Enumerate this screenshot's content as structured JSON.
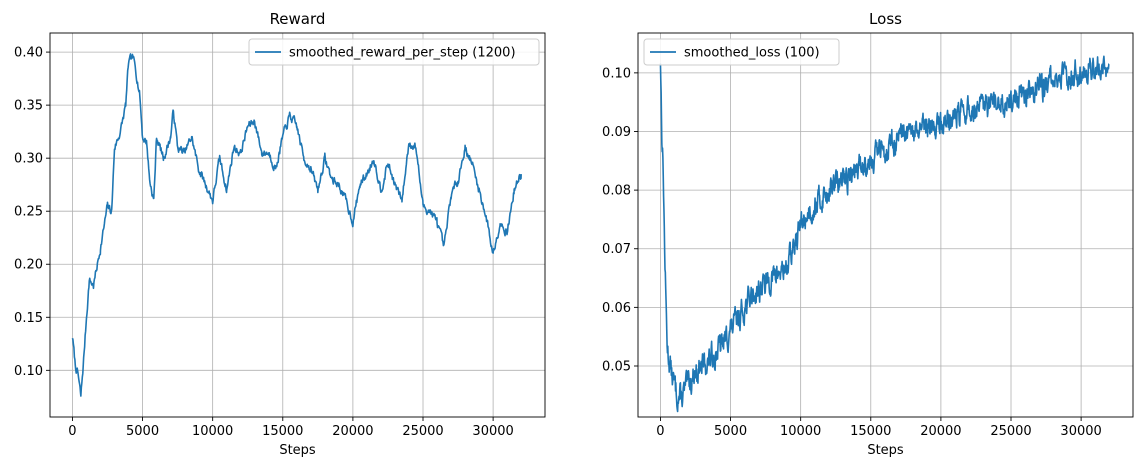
{
  "chart_data": [
    {
      "type": "line",
      "title": "Reward",
      "xlabel": "Steps",
      "ylabel": "",
      "xlim": [
        -1600,
        33700
      ],
      "ylim": [
        0.056,
        0.418
      ],
      "xticks": [
        0,
        5000,
        10000,
        15000,
        20000,
        25000,
        30000
      ],
      "xtick_labels": [
        "0",
        "5000",
        "10000",
        "15000",
        "20000",
        "25000",
        "30000"
      ],
      "yticks": [
        0.1,
        0.15,
        0.2,
        0.25,
        0.3,
        0.35,
        0.4
      ],
      "ytick_labels": [
        "0.10",
        "0.15",
        "0.20",
        "0.25",
        "0.30",
        "0.35",
        "0.40"
      ],
      "grid": true,
      "legend_position": "top-right",
      "series": [
        {
          "name": "smoothed_reward_per_step (1200)",
          "color": "#1f77b4",
          "x": [
            0,
            200,
            400,
            600,
            800,
            1000,
            1200,
            1500,
            2000,
            2500,
            2800,
            3000,
            3300,
            3500,
            3800,
            4000,
            4300,
            4500,
            4800,
            5000,
            5300,
            5500,
            5800,
            6000,
            6500,
            7000,
            7200,
            7500,
            8000,
            8500,
            9000,
            9500,
            10000,
            10500,
            11000,
            11500,
            12000,
            12500,
            13000,
            13500,
            14000,
            14500,
            15000,
            15500,
            16000,
            16500,
            17000,
            17500,
            18000,
            18500,
            19000,
            19500,
            20000,
            20500,
            21000,
            21500,
            22000,
            22500,
            23000,
            23500,
            24000,
            24500,
            25000,
            25500,
            26000,
            26500,
            27000,
            27500,
            28000,
            28500,
            29000,
            29500,
            30000,
            30500,
            31000,
            31500,
            32000
          ],
          "values": [
            0.132,
            0.105,
            0.096,
            0.075,
            0.11,
            0.15,
            0.185,
            0.18,
            0.215,
            0.255,
            0.25,
            0.31,
            0.32,
            0.33,
            0.35,
            0.39,
            0.395,
            0.385,
            0.36,
            0.32,
            0.315,
            0.28,
            0.26,
            0.32,
            0.3,
            0.32,
            0.345,
            0.31,
            0.305,
            0.32,
            0.29,
            0.275,
            0.26,
            0.3,
            0.27,
            0.31,
            0.305,
            0.33,
            0.335,
            0.305,
            0.305,
            0.29,
            0.32,
            0.34,
            0.33,
            0.3,
            0.29,
            0.27,
            0.3,
            0.28,
            0.275,
            0.26,
            0.24,
            0.275,
            0.285,
            0.3,
            0.27,
            0.295,
            0.275,
            0.26,
            0.315,
            0.31,
            0.255,
            0.25,
            0.24,
            0.215,
            0.265,
            0.28,
            0.31,
            0.295,
            0.27,
            0.245,
            0.21,
            0.24,
            0.23,
            0.27,
            0.285
          ]
        }
      ]
    },
    {
      "type": "line",
      "title": "Loss",
      "xlabel": "Steps",
      "ylabel": "",
      "xlim": [
        -1600,
        33700
      ],
      "ylim": [
        0.0413,
        0.1068
      ],
      "xticks": [
        0,
        5000,
        10000,
        15000,
        20000,
        25000,
        30000
      ],
      "xtick_labels": [
        "0",
        "5000",
        "10000",
        "15000",
        "20000",
        "25000",
        "30000"
      ],
      "yticks": [
        0.05,
        0.06,
        0.07,
        0.08,
        0.09,
        0.1
      ],
      "ytick_labels": [
        "0.05",
        "0.06",
        "0.07",
        "0.08",
        "0.09",
        "0.10"
      ],
      "grid": true,
      "legend_position": "top-left",
      "series": [
        {
          "name": "smoothed_loss (100)",
          "color": "#1f77b4",
          "x": [
            0,
            100,
            200,
            300,
            400,
            500,
            700,
            900,
            1200,
            1500,
            2000,
            2500,
            3000,
            3500,
            4000,
            4500,
            5000,
            5500,
            6000,
            6500,
            7000,
            7500,
            8000,
            8500,
            9000,
            9500,
            10000,
            10500,
            11000,
            11500,
            12000,
            12500,
            13000,
            13500,
            14000,
            14500,
            15000,
            15500,
            16000,
            16500,
            17000,
            17500,
            18000,
            18500,
            19000,
            19500,
            20000,
            20500,
            21000,
            21500,
            22000,
            22500,
            23000,
            23500,
            24000,
            24500,
            25000,
            25500,
            26000,
            26500,
            27000,
            27500,
            28000,
            28500,
            29000,
            29500,
            30000,
            30500,
            31000,
            31500,
            32000
          ],
          "values": [
            0.1025,
            0.09,
            0.0835,
            0.07,
            0.06,
            0.053,
            0.05,
            0.0475,
            0.045,
            0.0445,
            0.047,
            0.049,
            0.05,
            0.051,
            0.0525,
            0.054,
            0.056,
            0.058,
            0.06,
            0.062,
            0.063,
            0.064,
            0.065,
            0.066,
            0.067,
            0.07,
            0.074,
            0.076,
            0.0775,
            0.0785,
            0.08,
            0.081,
            0.0815,
            0.0825,
            0.0835,
            0.0845,
            0.0855,
            0.0865,
            0.087,
            0.088,
            0.0885,
            0.089,
            0.0895,
            0.09,
            0.0905,
            0.091,
            0.0915,
            0.092,
            0.0925,
            0.093,
            0.0935,
            0.0935,
            0.094,
            0.094,
            0.0945,
            0.095,
            0.0955,
            0.096,
            0.0965,
            0.097,
            0.0975,
            0.098,
            0.0985,
            0.099,
            0.0995,
            0.1,
            0.1005,
            0.1005,
            0.101,
            0.101,
            0.1015
          ]
        }
      ]
    }
  ]
}
